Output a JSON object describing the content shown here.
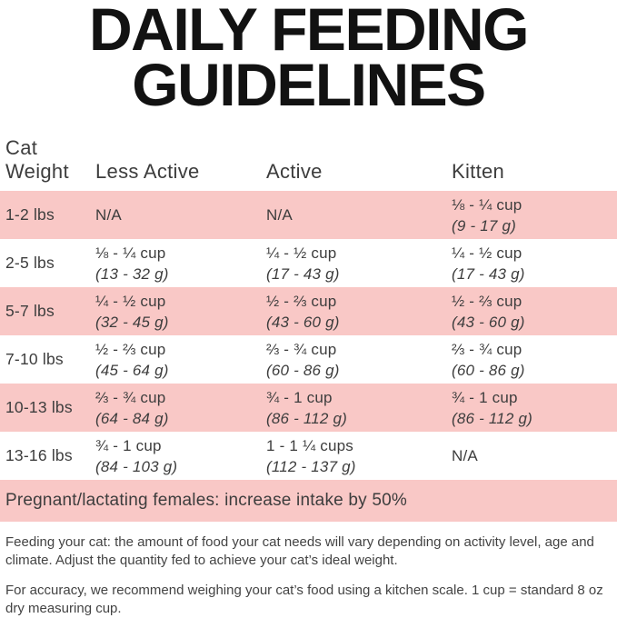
{
  "title": {
    "line1": "DAILY FEEDING",
    "line2": "GUIDELINES"
  },
  "table": {
    "headers": [
      "Cat\nWeight",
      "Less Active",
      "Active",
      "Kitten"
    ],
    "rows": [
      {
        "weight": "1-2 lbs",
        "less_active": {
          "cups": "N/A",
          "grams": ""
        },
        "active": {
          "cups": "N/A",
          "grams": ""
        },
        "kitten": {
          "cups": "⅛ - ¼ cup",
          "grams": "(9 - 17 g)"
        }
      },
      {
        "weight": "2-5 lbs",
        "less_active": {
          "cups": "⅛ - ¼ cup",
          "grams": "(13 - 32 g)"
        },
        "active": {
          "cups": "¼ - ½ cup",
          "grams": "(17 - 43 g)"
        },
        "kitten": {
          "cups": "¼ - ½ cup",
          "grams": "(17 - 43 g)"
        }
      },
      {
        "weight": "5-7 lbs",
        "less_active": {
          "cups": "¼ - ½ cup",
          "grams": "(32 - 45 g)"
        },
        "active": {
          "cups": "½ - ⅔ cup",
          "grams": "(43 - 60 g)"
        },
        "kitten": {
          "cups": "½ - ⅔ cup",
          "grams": "(43 - 60 g)"
        }
      },
      {
        "weight": "7-10 lbs",
        "less_active": {
          "cups": "½ - ⅔ cup",
          "grams": "(45 - 64 g)"
        },
        "active": {
          "cups": "⅔ - ¾ cup",
          "grams": "(60 - 86 g)"
        },
        "kitten": {
          "cups": "⅔ - ¾ cup",
          "grams": "(60 - 86 g)"
        }
      },
      {
        "weight": "10-13 lbs",
        "less_active": {
          "cups": "⅔ - ¾ cup",
          "grams": "(64 - 84 g)"
        },
        "active": {
          "cups": "¾ - 1 cup",
          "grams": "(86 - 112 g)"
        },
        "kitten": {
          "cups": "¾ - 1 cup",
          "grams": "(86 - 112 g)"
        }
      },
      {
        "weight": "13-16 lbs",
        "less_active": {
          "cups": "¾ - 1 cup",
          "grams": "(84 - 103 g)"
        },
        "active": {
          "cups": "1 - 1 ¼ cups",
          "grams": "(112 - 137 g)"
        },
        "kitten": {
          "cups": "N/A",
          "grams": ""
        }
      }
    ]
  },
  "note": "Pregnant/lactating females: increase intake by 50%",
  "footnotes": [
    "Feeding your cat: the amount of food your cat needs will vary depending on activity level, age and climate. Adjust the quantity fed to achieve your cat’s ideal weight.",
    "For accuracy, we recommend weighing your cat’s food using a kitchen scale. 1 cup = standard 8 oz dry measuring cup."
  ],
  "colors": {
    "row_highlight_pink": "#f9c8c6",
    "body_text": "#3d3d3d",
    "title_text": "#121212"
  }
}
